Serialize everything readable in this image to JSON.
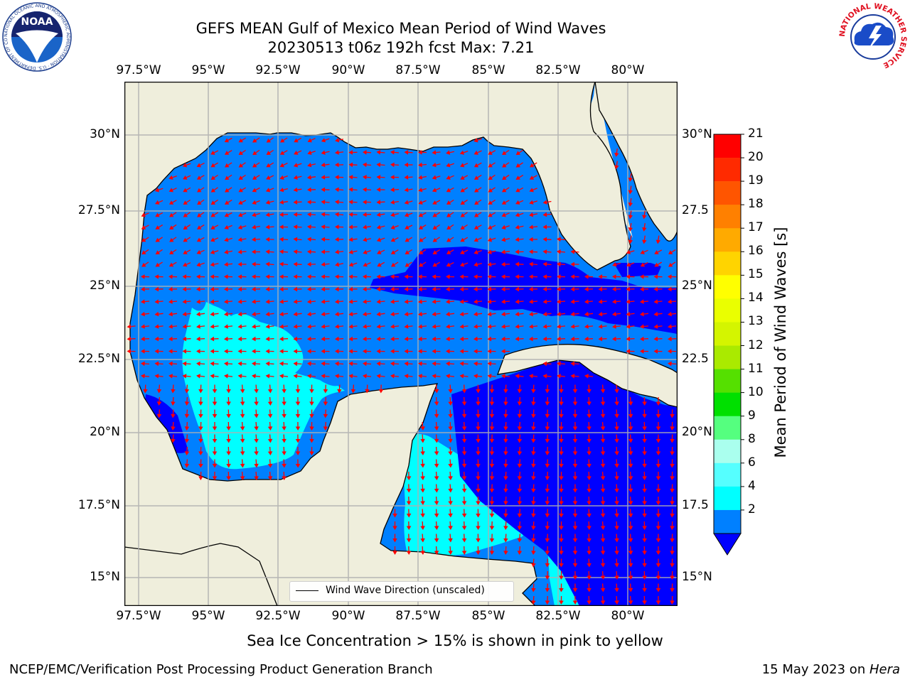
{
  "title": {
    "line1": "GEFS MEAN Gulf of Mexico Mean Period of Wind Waves",
    "line2": "20230513 t06z 192h fcst   Max: 7.21"
  },
  "map": {
    "lon_ticks": [
      "97.5°W",
      "95°W",
      "92.5°W",
      "90°W",
      "87.5°W",
      "85°W",
      "82.5°W",
      "80°W"
    ],
    "lat_ticks_left": [
      "30°N",
      "27.5°N",
      "25°N",
      "22.5°N",
      "20°N",
      "17.5°N",
      "15°N"
    ],
    "lat_ticks_right": [
      "30°N",
      "27.5",
      "25°N",
      "22.5",
      "20°N",
      "17.5",
      "15°N"
    ],
    "legend": "Wind Wave Direction (unscaled)",
    "land_color": "#efeedc",
    "arrow_color": "#ff0000"
  },
  "colorbar": {
    "label": "Mean Period of Wind Waves [s]",
    "ticks": [
      "21",
      "20",
      "19",
      "18",
      "17",
      "16",
      "15",
      "14",
      "13",
      "12",
      "11",
      "10",
      "9",
      "8",
      "6",
      "4",
      "2"
    ],
    "colors": [
      "#ff0000",
      "#ff2a00",
      "#ff5500",
      "#ff8000",
      "#ffaa00",
      "#ffd400",
      "#ffff00",
      "#eaff00",
      "#d4f500",
      "#aaea00",
      "#55e000",
      "#00e000",
      "#55ff7f",
      "#aaffee",
      "#55ffff",
      "#00ffff",
      "#0080ff"
    ],
    "extend_color": "#0000ff"
  },
  "note": "Sea Ice Concentration > 15% is shown in pink to yellow",
  "footer": {
    "left": "NCEP/EMC/Verification Post Processing Product Generation Branch",
    "date": "15 May 2023 on ",
    "machine": "Hera"
  },
  "logos": {
    "noaa": "NOAA",
    "noaa_ring": "NATIONAL OCEANIC AND ATMOSPHERIC ADMINISTRATION · U.S. DEPARTMENT OF COMMERCE ·",
    "nws_ring": "NATIONAL WEATHER SERVICE"
  }
}
